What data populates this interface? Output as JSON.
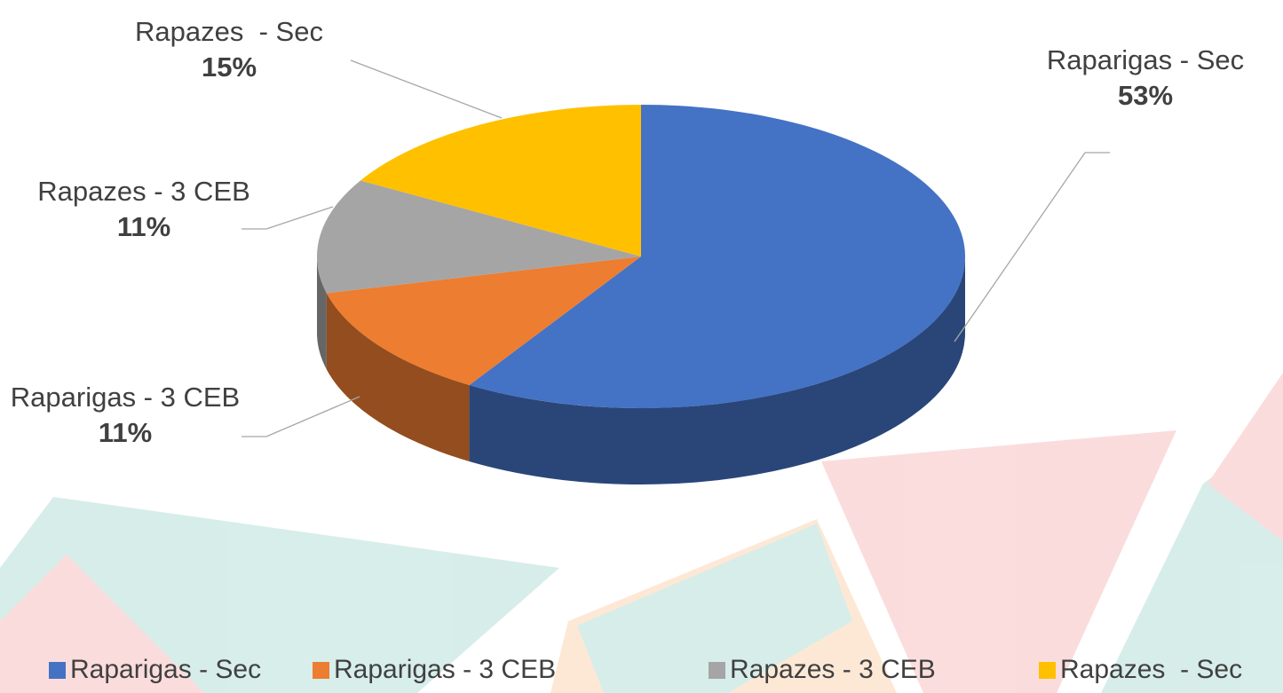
{
  "chart_data": {
    "type": "pie3d",
    "categories": [
      "Raparigas - Sec",
      "Raparigas - 3 CEB",
      "Rapazes - 3 CEB",
      "Rapazes  - Sec"
    ],
    "values": [
      53,
      11,
      11,
      15
    ],
    "value_labels": [
      "53%",
      "11%",
      "11%",
      "15%"
    ],
    "colors": [
      "#4472c4",
      "#ed7d31",
      "#a5a5a5",
      "#ffc000"
    ],
    "legend": "bottom"
  }
}
